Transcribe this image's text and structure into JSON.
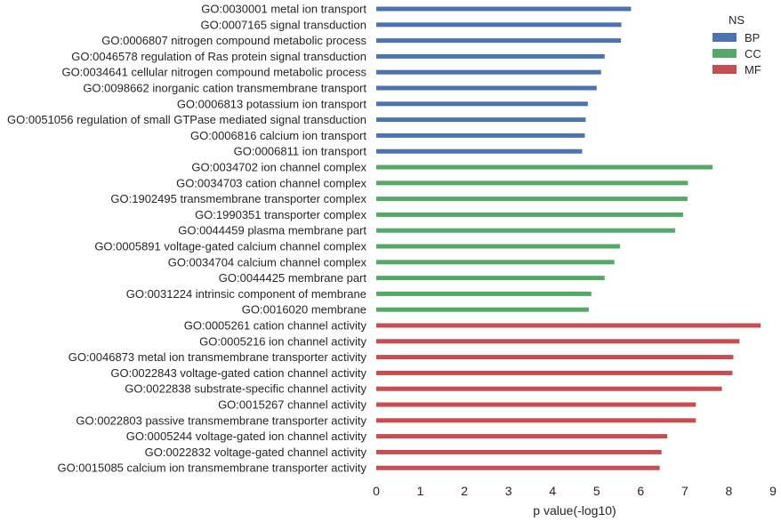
{
  "chart_data": {
    "type": "bar",
    "orientation": "horizontal",
    "xlabel": "p value(-log10)",
    "ylabel": "",
    "xlim": [
      0,
      9
    ],
    "xticks": [
      0,
      1,
      2,
      3,
      4,
      5,
      6,
      7,
      8,
      9
    ],
    "grid": false,
    "legend": {
      "title": "NS",
      "position": "top-right",
      "entries": [
        {
          "name": "BP",
          "color": "#4c72b0"
        },
        {
          "name": "CC",
          "color": "#55a868"
        },
        {
          "name": "MF",
          "color": "#c44e52"
        }
      ]
    },
    "bars": [
      {
        "label": "GO:0030001 metal ion transport",
        "value": 5.78,
        "ns": "BP"
      },
      {
        "label": "GO:0007165 signal transduction",
        "value": 5.56,
        "ns": "BP"
      },
      {
        "label": "GO:0006807 nitrogen compound metabolic process",
        "value": 5.55,
        "ns": "BP"
      },
      {
        "label": "GO:0046578 regulation of Ras protein signal transduction",
        "value": 5.18,
        "ns": "BP"
      },
      {
        "label": "GO:0034641 cellular nitrogen compound metabolic process",
        "value": 5.1,
        "ns": "BP"
      },
      {
        "label": "GO:0098662 inorganic cation transmembrane transport",
        "value": 5.0,
        "ns": "BP"
      },
      {
        "label": "GO:0006813 potassium ion transport",
        "value": 4.8,
        "ns": "BP"
      },
      {
        "label": "GO:0051056 regulation of small GTPase mediated signal transduction",
        "value": 4.75,
        "ns": "BP"
      },
      {
        "label": "GO:0006816 calcium ion transport",
        "value": 4.73,
        "ns": "BP"
      },
      {
        "label": "GO:0006811 ion transport",
        "value": 4.67,
        "ns": "BP"
      },
      {
        "label": "GO:0034702 ion channel complex",
        "value": 7.63,
        "ns": "CC"
      },
      {
        "label": "GO:0034703 cation channel complex",
        "value": 7.07,
        "ns": "CC"
      },
      {
        "label": "GO:1902495 transmembrane transporter complex",
        "value": 7.06,
        "ns": "CC"
      },
      {
        "label": "GO:1990351 transporter complex",
        "value": 6.96,
        "ns": "CC"
      },
      {
        "label": "GO:0044459 plasma membrane part",
        "value": 6.78,
        "ns": "CC"
      },
      {
        "label": "GO:0005891 voltage-gated calcium channel complex",
        "value": 5.53,
        "ns": "CC"
      },
      {
        "label": "GO:0034704 calcium channel complex",
        "value": 5.4,
        "ns": "CC"
      },
      {
        "label": "GO:0044425 membrane part",
        "value": 5.18,
        "ns": "CC"
      },
      {
        "label": "GO:0031224 intrinsic component of membrane",
        "value": 4.88,
        "ns": "CC"
      },
      {
        "label": "GO:0016020 membrane",
        "value": 4.82,
        "ns": "CC"
      },
      {
        "label": "GO:0005261 cation channel activity",
        "value": 8.72,
        "ns": "MF"
      },
      {
        "label": "GO:0005216 ion channel activity",
        "value": 8.24,
        "ns": "MF"
      },
      {
        "label": "GO:0046873 metal ion transmembrane transporter activity",
        "value": 8.1,
        "ns": "MF"
      },
      {
        "label": "GO:0022843 voltage-gated cation channel activity",
        "value": 8.08,
        "ns": "MF"
      },
      {
        "label": "GO:0022838 substrate-specific channel activity",
        "value": 7.84,
        "ns": "MF"
      },
      {
        "label": "GO:0015267 channel activity",
        "value": 7.25,
        "ns": "MF"
      },
      {
        "label": "GO:0022803 passive transmembrane transporter activity",
        "value": 7.25,
        "ns": "MF"
      },
      {
        "label": "GO:0005244 voltage-gated ion channel activity",
        "value": 6.6,
        "ns": "MF"
      },
      {
        "label": "GO:0022832 voltage-gated channel activity",
        "value": 6.47,
        "ns": "MF"
      },
      {
        "label": "GO:0015085 calcium ion transmembrane transporter activity",
        "value": 6.43,
        "ns": "MF"
      }
    ]
  }
}
